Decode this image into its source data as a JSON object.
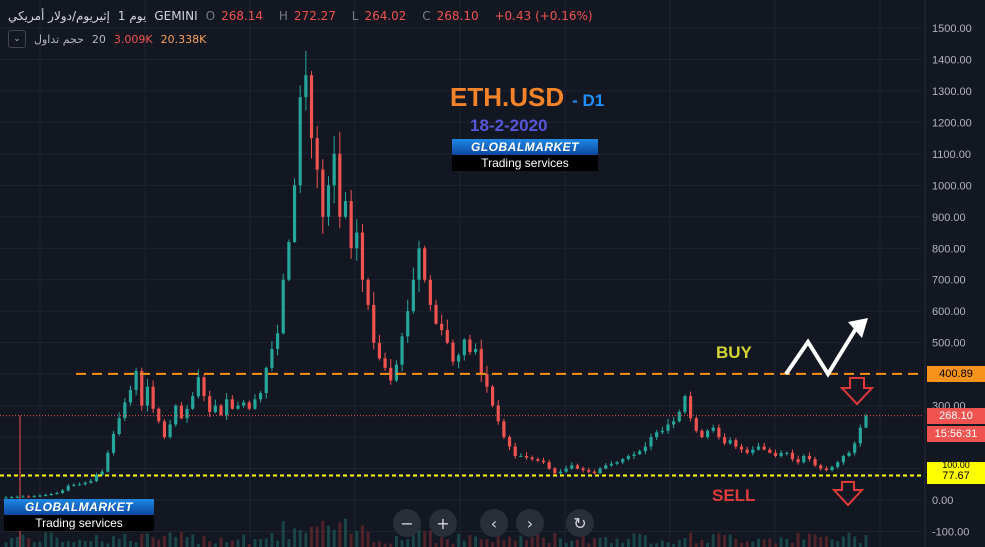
{
  "header": {
    "symbol_desc": "إثيريوم/دولار أمريكي",
    "interval": "يوم 1",
    "exchange": "GEMINI",
    "o_label": "O",
    "o_value": "268.14",
    "h_label": "H",
    "h_value": "272.27",
    "l_label": "L",
    "l_value": "264.02",
    "c_label": "C",
    "c_value": "268.10",
    "change": "+0.43 (+0.16%)",
    "volume_label": "حجم تداول",
    "volume_period": "20",
    "volume_value": "3.009K",
    "volume_ma": "20.338K"
  },
  "badges": {
    "buy_level": "400.89",
    "last_price": "268.10",
    "countdown": "15:56:31",
    "sell_level": "77.67",
    "hidden_level": "100.00"
  },
  "annotations": {
    "symbol": "ETH.USD",
    "timeframe": "- D1",
    "date": "18-2-2020",
    "buy": "BUY",
    "sell": "SELL",
    "logo_top": "GLOBALMARKET",
    "logo_bottom": "Trading services"
  },
  "nav": {
    "zoom_out": "−",
    "zoom_in": "+",
    "scroll_left": "‹",
    "scroll_right": "›",
    "reset": "↻"
  },
  "colors": {
    "background": "#131722",
    "up": "#26a69a",
    "down": "#ef5350",
    "buy_line": "#f7931a",
    "sell_line": "#ffff00"
  },
  "chart_data": {
    "type": "line",
    "title": "",
    "xlabel": "",
    "ylabel": "",
    "ylim": [
      -100,
      1550
    ],
    "y_ticks": [
      "1500.00",
      "1400.00",
      "1300.00",
      "1200.00",
      "1100.00",
      "1000.00",
      "900.00",
      "800.00",
      "700.00",
      "600.00",
      "500.00",
      "400.00",
      "300.00",
      "200.00",
      "100.00",
      "0.00",
      "-100.00"
    ],
    "y_tick_values": [
      1500,
      1400,
      1300,
      1200,
      1100,
      1000,
      900,
      800,
      700,
      600,
      500,
      400,
      300,
      200,
      100,
      0,
      -100
    ],
    "series": [
      {
        "values": [
          8,
          9,
          10,
          11,
          10,
          12,
          14,
          16,
          19,
          22,
          30,
          45,
          48,
          50,
          55,
          60,
          80,
          90,
          150,
          210,
          260,
          310,
          350,
          410,
          300,
          360,
          290,
          250,
          200,
          240,
          300,
          260,
          290,
          330,
          390,
          330,
          280,
          300,
          270,
          320,
          290,
          300,
          310,
          290,
          320,
          340,
          420,
          480,
          530,
          700,
          820,
          1000,
          1280,
          1350,
          1150,
          1050,
          900,
          1000,
          1100,
          900,
          950,
          800,
          850,
          700,
          620,
          500,
          450,
          420,
          380,
          430,
          520,
          600,
          700,
          800,
          700,
          620,
          560,
          540,
          500,
          440,
          460,
          510,
          470,
          480,
          400,
          360,
          300,
          250,
          200,
          170,
          140,
          140,
          135,
          130,
          125,
          120,
          100,
          85,
          90,
          100,
          110,
          100,
          95,
          90,
          85,
          100,
          110,
          115,
          120,
          130,
          140,
          145,
          155,
          170,
          200,
          215,
          220,
          240,
          250,
          280,
          330,
          260,
          220,
          200,
          220,
          230,
          200,
          180,
          190,
          170,
          160,
          150,
          160,
          170,
          160,
          150,
          140,
          150,
          150,
          130,
          120,
          140,
          130,
          110,
          100,
          95,
          105,
          120,
          140,
          150,
          180,
          230,
          268
        ]
      }
    ],
    "horizontal_lines": [
      {
        "value": 400.89,
        "label": "BUY"
      },
      {
        "value": 268.1
      },
      {
        "value": 77.67,
        "label": "SELL"
      }
    ],
    "grid": true,
    "legend": "none"
  }
}
